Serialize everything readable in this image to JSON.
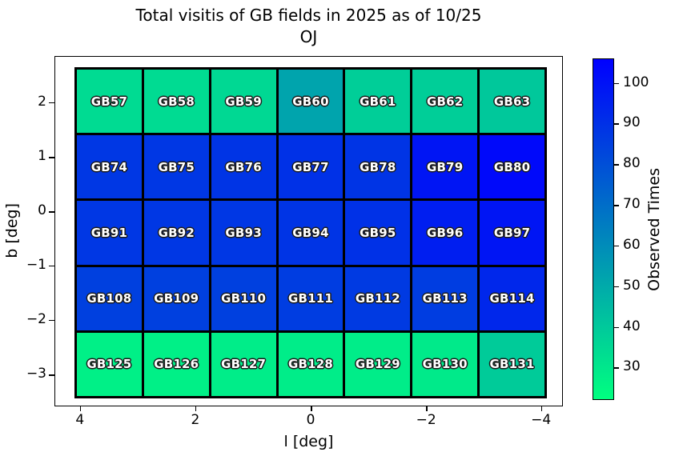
{
  "chart_data": {
    "type": "heatmap",
    "title": "Total visitis of GB fields in 2025 as of 10/25",
    "subtitle": "OJ",
    "xlabel": "l [deg]",
    "ylabel": "b [deg]",
    "colorbar_label": "Observed Times",
    "colormap": "winter_r",
    "vmin": 22,
    "vmax": 106,
    "colorbar_ticks": [
      100,
      90,
      80,
      70,
      60,
      50,
      40,
      30
    ],
    "x_ticks": [
      "4",
      "2",
      "0",
      "−2",
      "−4"
    ],
    "y_ticks": [
      "2",
      "1",
      "0",
      "−1",
      "−2",
      "−3"
    ],
    "x_axis_reversed": true,
    "grid_shape": {
      "rows": 5,
      "cols": 7
    },
    "rows": [
      {
        "fields": [
          "GB57",
          "GB58",
          "GB59",
          "GB60",
          "GB61",
          "GB62",
          "GB63"
        ],
        "values": [
          34,
          34,
          35,
          52,
          38,
          38,
          40
        ]
      },
      {
        "fields": [
          "GB74",
          "GB75",
          "GB76",
          "GB77",
          "GB78",
          "GB79",
          "GB80"
        ],
        "values": [
          88,
          88,
          89,
          90,
          89,
          99,
          103
        ]
      },
      {
        "fields": [
          "GB91",
          "GB92",
          "GB93",
          "GB94",
          "GB95",
          "GB96",
          "GB97"
        ],
        "values": [
          88,
          88,
          88,
          89,
          90,
          96,
          99
        ]
      },
      {
        "fields": [
          "GB108",
          "GB109",
          "GB110",
          "GB111",
          "GB112",
          "GB113",
          "GB114"
        ],
        "values": [
          85,
          85,
          85,
          86,
          87,
          86,
          93
        ]
      },
      {
        "fields": [
          "GB125",
          "GB126",
          "GB127",
          "GB128",
          "GB129",
          "GB130",
          "GB131"
        ],
        "values": [
          27,
          27,
          28,
          28,
          28,
          29,
          39
        ]
      }
    ],
    "colors": {
      "cmap_top": "#0000ff",
      "cmap_bottom": "#00ff80",
      "cell_border": "#000000",
      "label_text": "#ffffff"
    }
  }
}
